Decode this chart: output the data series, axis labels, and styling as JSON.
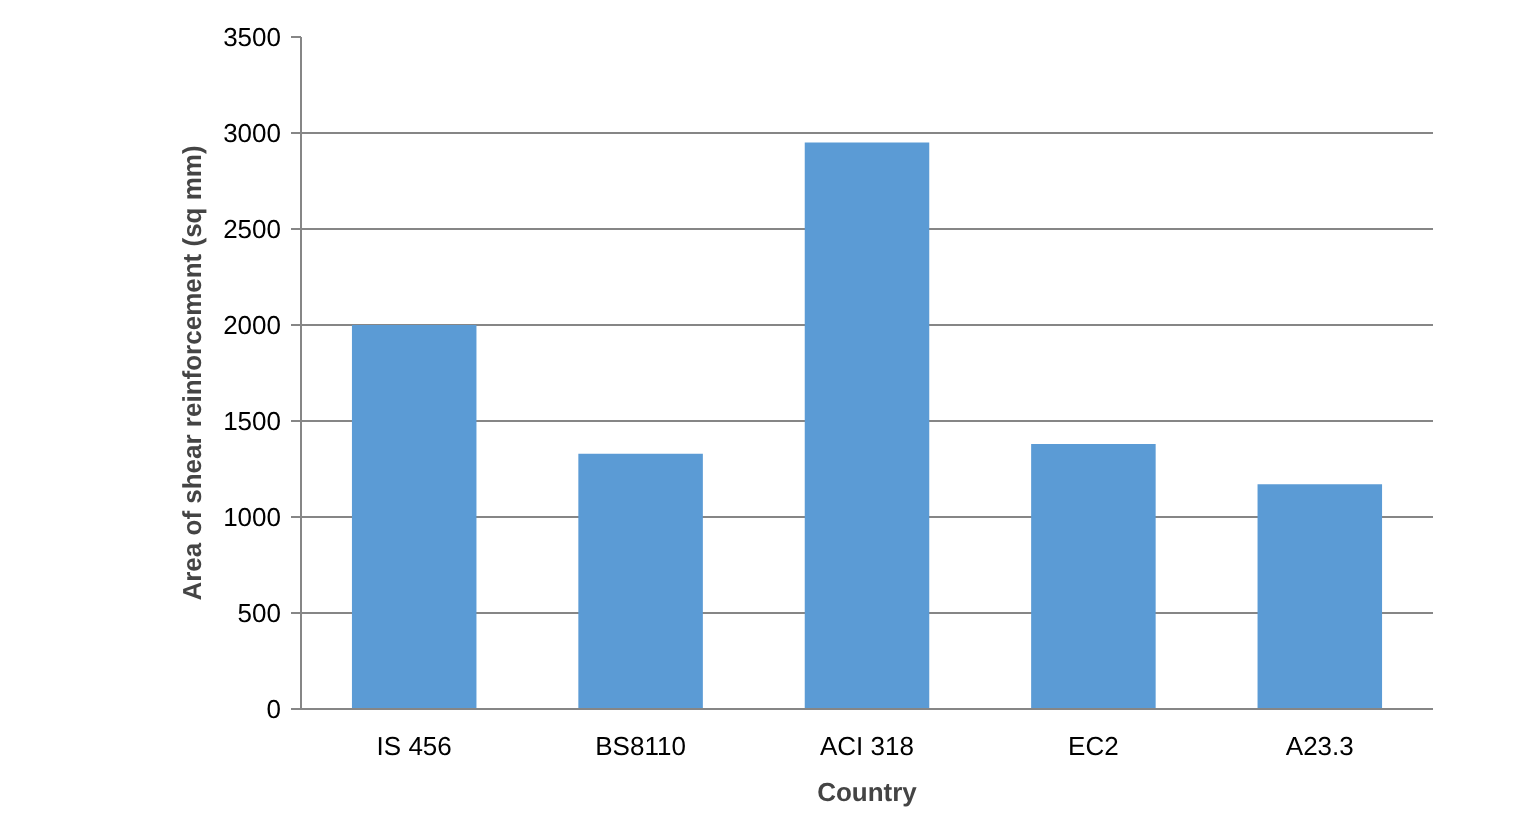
{
  "chart_data": {
    "type": "bar",
    "xlabel": "Country",
    "ylabel": "Area of shear reinforcement (sq mm)",
    "categories": [
      "IS 456",
      "BS8110",
      "ACI 318",
      "EC2",
      "A23.3"
    ],
    "series": [
      {
        "color": "#5b9bd5",
        "values": [
          2000,
          1330,
          2950,
          1380,
          1170
        ]
      }
    ],
    "ylim": [
      0,
      3500
    ],
    "yticks": [
      0,
      500,
      1000,
      1500,
      2000,
      2500,
      3000,
      3500
    ],
    "grid": "y"
  }
}
